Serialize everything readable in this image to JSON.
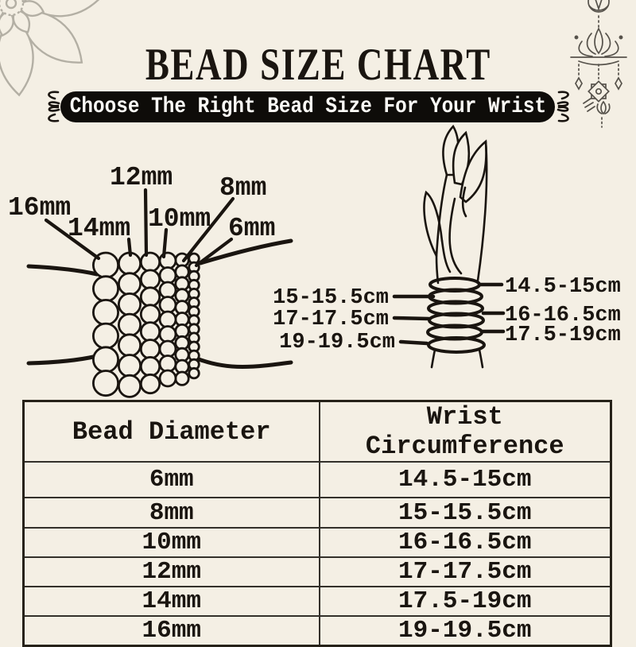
{
  "colors": {
    "bg": "#f4efe4",
    "ink": "#1a1510",
    "banner_bg": "#0e0c09",
    "banner_text": "#fbfaf6",
    "mandala": "#b3afa4",
    "ornament": "#56524b",
    "line": "#33302a"
  },
  "header": {
    "title": "BEAD SIZE CHART",
    "banner": "Choose The Right Bead Size For Your Wrist"
  },
  "icons": {
    "mandala": "mandala-flower-icon",
    "lotus": "hanging-lotus-ornament-icon",
    "flourish_left": "flourish-bracket-left-icon",
    "flourish_right": "flourish-bracket-right-icon",
    "bracelets": "bead-bracelet-stack-icon",
    "hand": "hand-with-bracelets-icon"
  },
  "bead_diagram": {
    "labels": [
      "16mm",
      "14mm",
      "12mm",
      "10mm",
      "8mm",
      "6mm"
    ]
  },
  "wrist_diagram": {
    "left_labels": [
      "15-15.5cm",
      "17-17.5cm",
      "19-19.5cm"
    ],
    "right_labels": [
      "14.5-15cm",
      "16-16.5cm",
      "17.5-19cm"
    ]
  },
  "size_table": {
    "headers": {
      "bead": "Bead Diameter",
      "wrist": "Wrist Circumference"
    },
    "rows": [
      {
        "bead": "6mm",
        "wrist": "14.5-15cm"
      },
      {
        "bead": "8mm",
        "wrist": "15-15.5cm"
      },
      {
        "bead": "10mm",
        "wrist": "16-16.5cm"
      },
      {
        "bead": "12mm",
        "wrist": "17-17.5cm"
      },
      {
        "bead": "14mm",
        "wrist": "17.5-19cm"
      },
      {
        "bead": "16mm",
        "wrist": "19-19.5cm"
      }
    ]
  }
}
